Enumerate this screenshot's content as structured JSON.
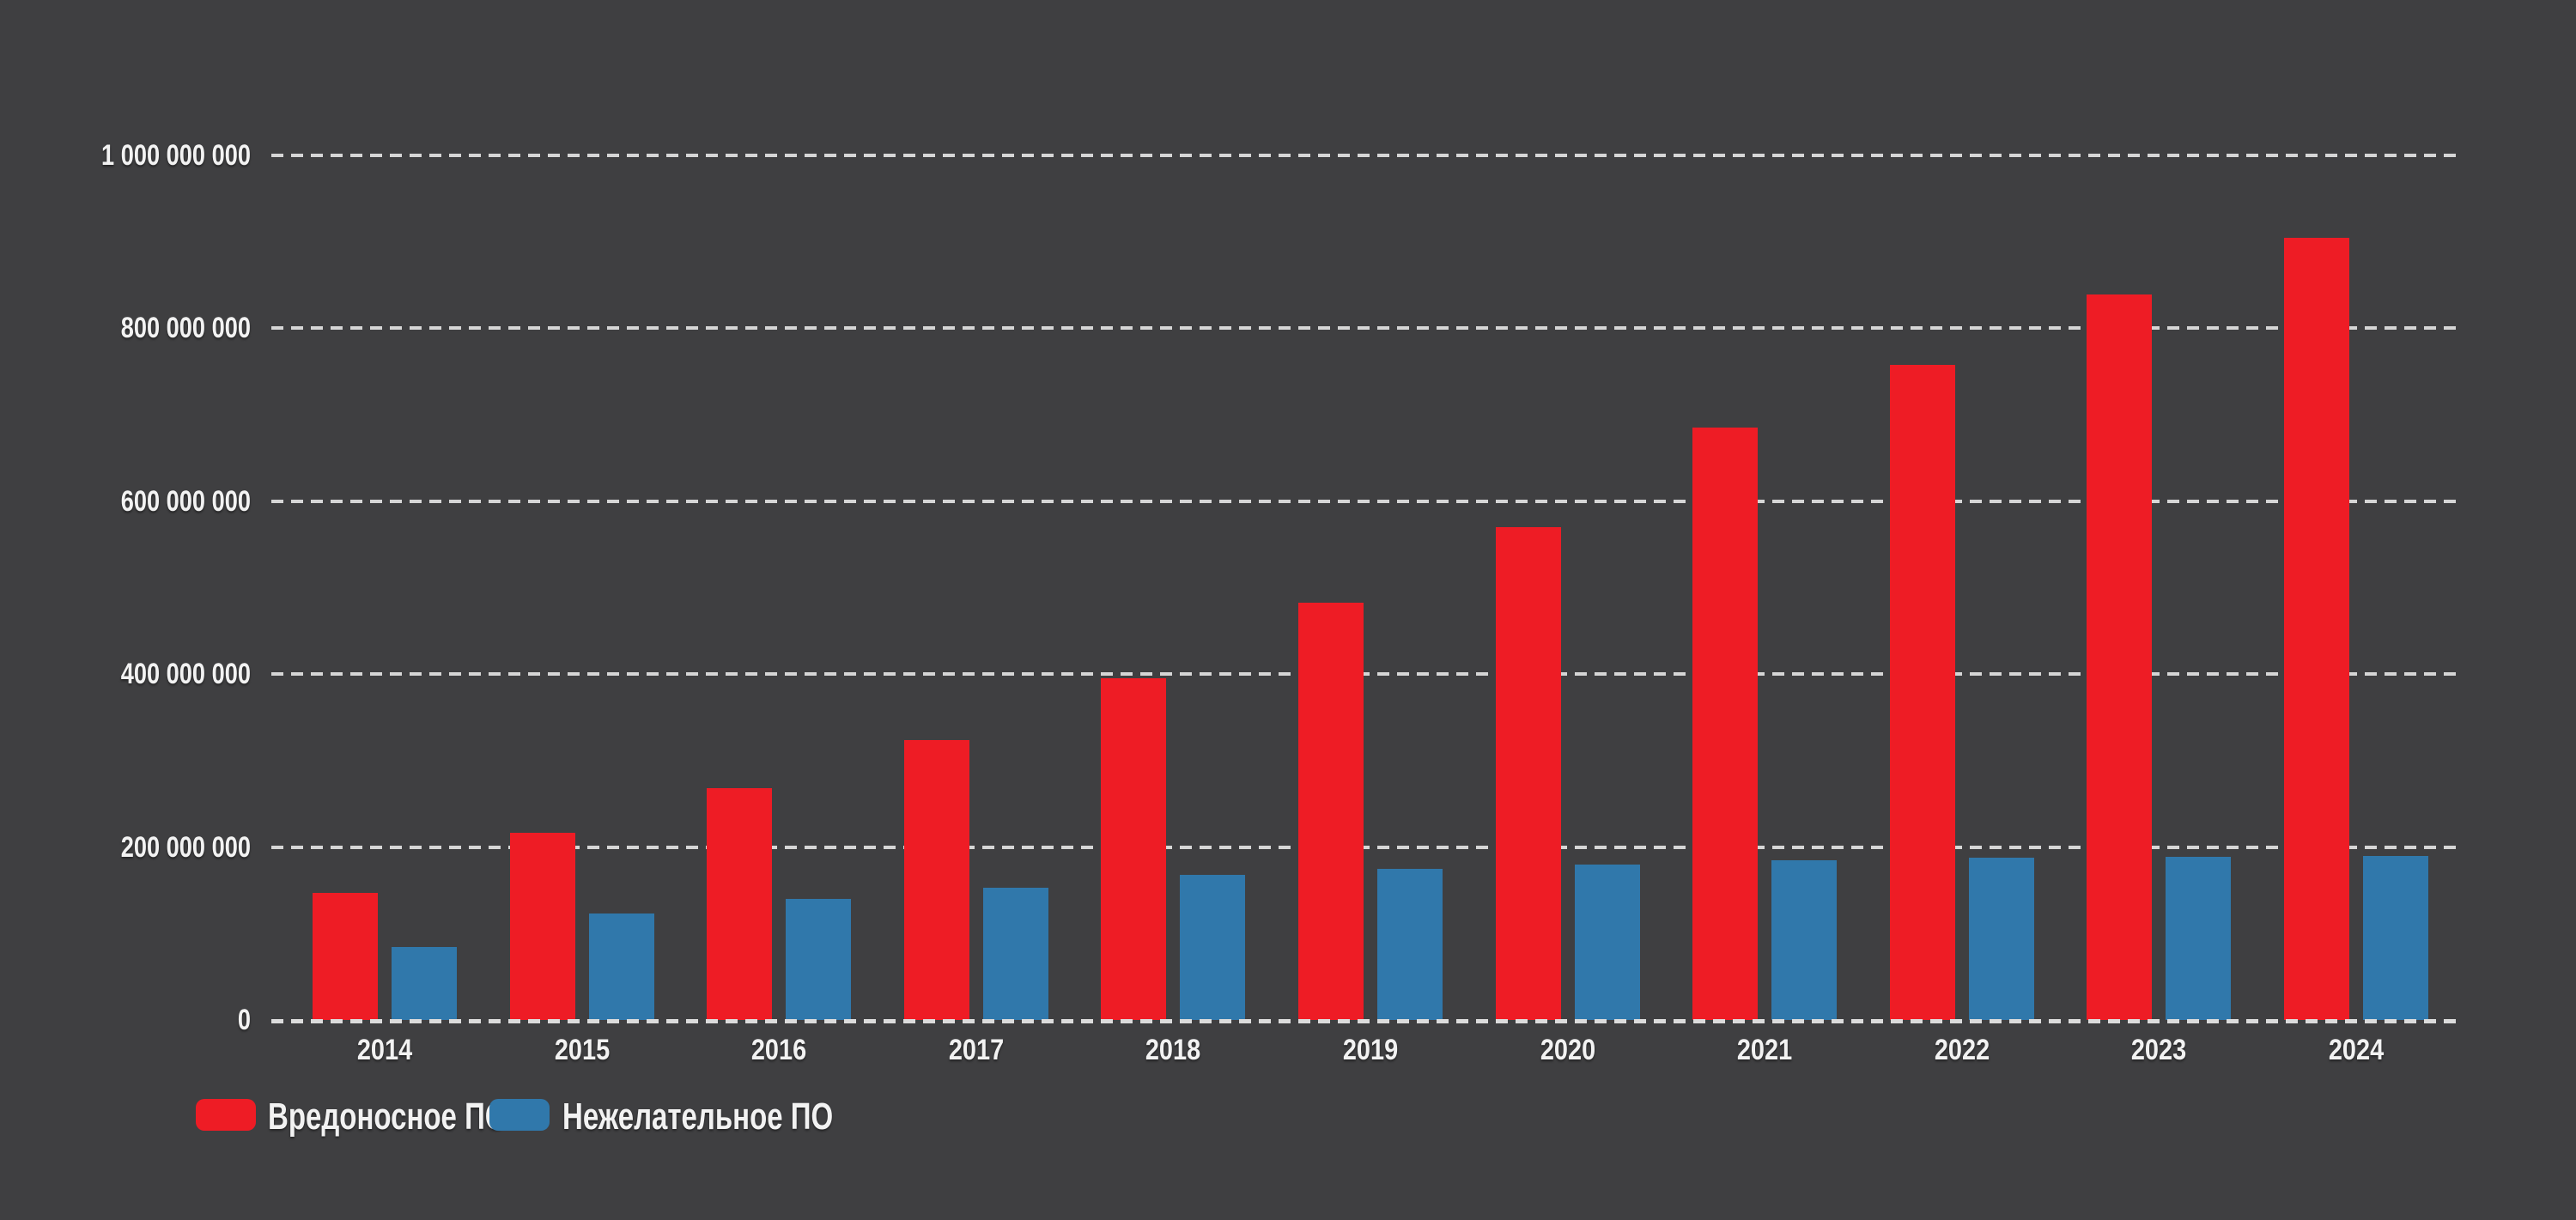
{
  "colors": {
    "background": "#3f3f41",
    "text": "#f2f2f2",
    "grid": "#d6d6d6",
    "baseline": "#dcdcdc",
    "malware_red": "#ee1c25",
    "pua_blue": "#3078ab"
  },
  "chart_data": {
    "type": "bar",
    "title": "",
    "categories": [
      "2014",
      "2015",
      "2016",
      "2017",
      "2018",
      "2019",
      "2020",
      "2021",
      "2022",
      "2023",
      "2024"
    ],
    "series": [
      {
        "name": "Вредоносное ПО",
        "color": "#ee1c25",
        "values": [
          147000000,
          216000000,
          268000000,
          324000000,
          395000000,
          483000000,
          570000000,
          685000000,
          758000000,
          839000000,
          905000000
        ]
      },
      {
        "name": "Нежелательное ПО",
        "color": "#3078ab",
        "values": [
          84000000,
          123000000,
          140000000,
          153000000,
          168000000,
          175000000,
          180000000,
          185000000,
          188000000,
          189000000,
          190000000
        ]
      }
    ],
    "ylim": [
      0,
      1000000000
    ],
    "ytick_interval": 200000000,
    "ytick_labels": [
      "0",
      "200 000 000",
      "400 000 000",
      "600 000 000",
      "800 000 000",
      "1 000 000 000"
    ],
    "grid": "horizontal-dashed",
    "legend_position": "bottom-left"
  },
  "legend": {
    "items": [
      {
        "label": "Вредоносное ПО",
        "color": "#ee1c25"
      },
      {
        "label": "Нежелательное ПО",
        "color": "#3078ab"
      }
    ]
  }
}
